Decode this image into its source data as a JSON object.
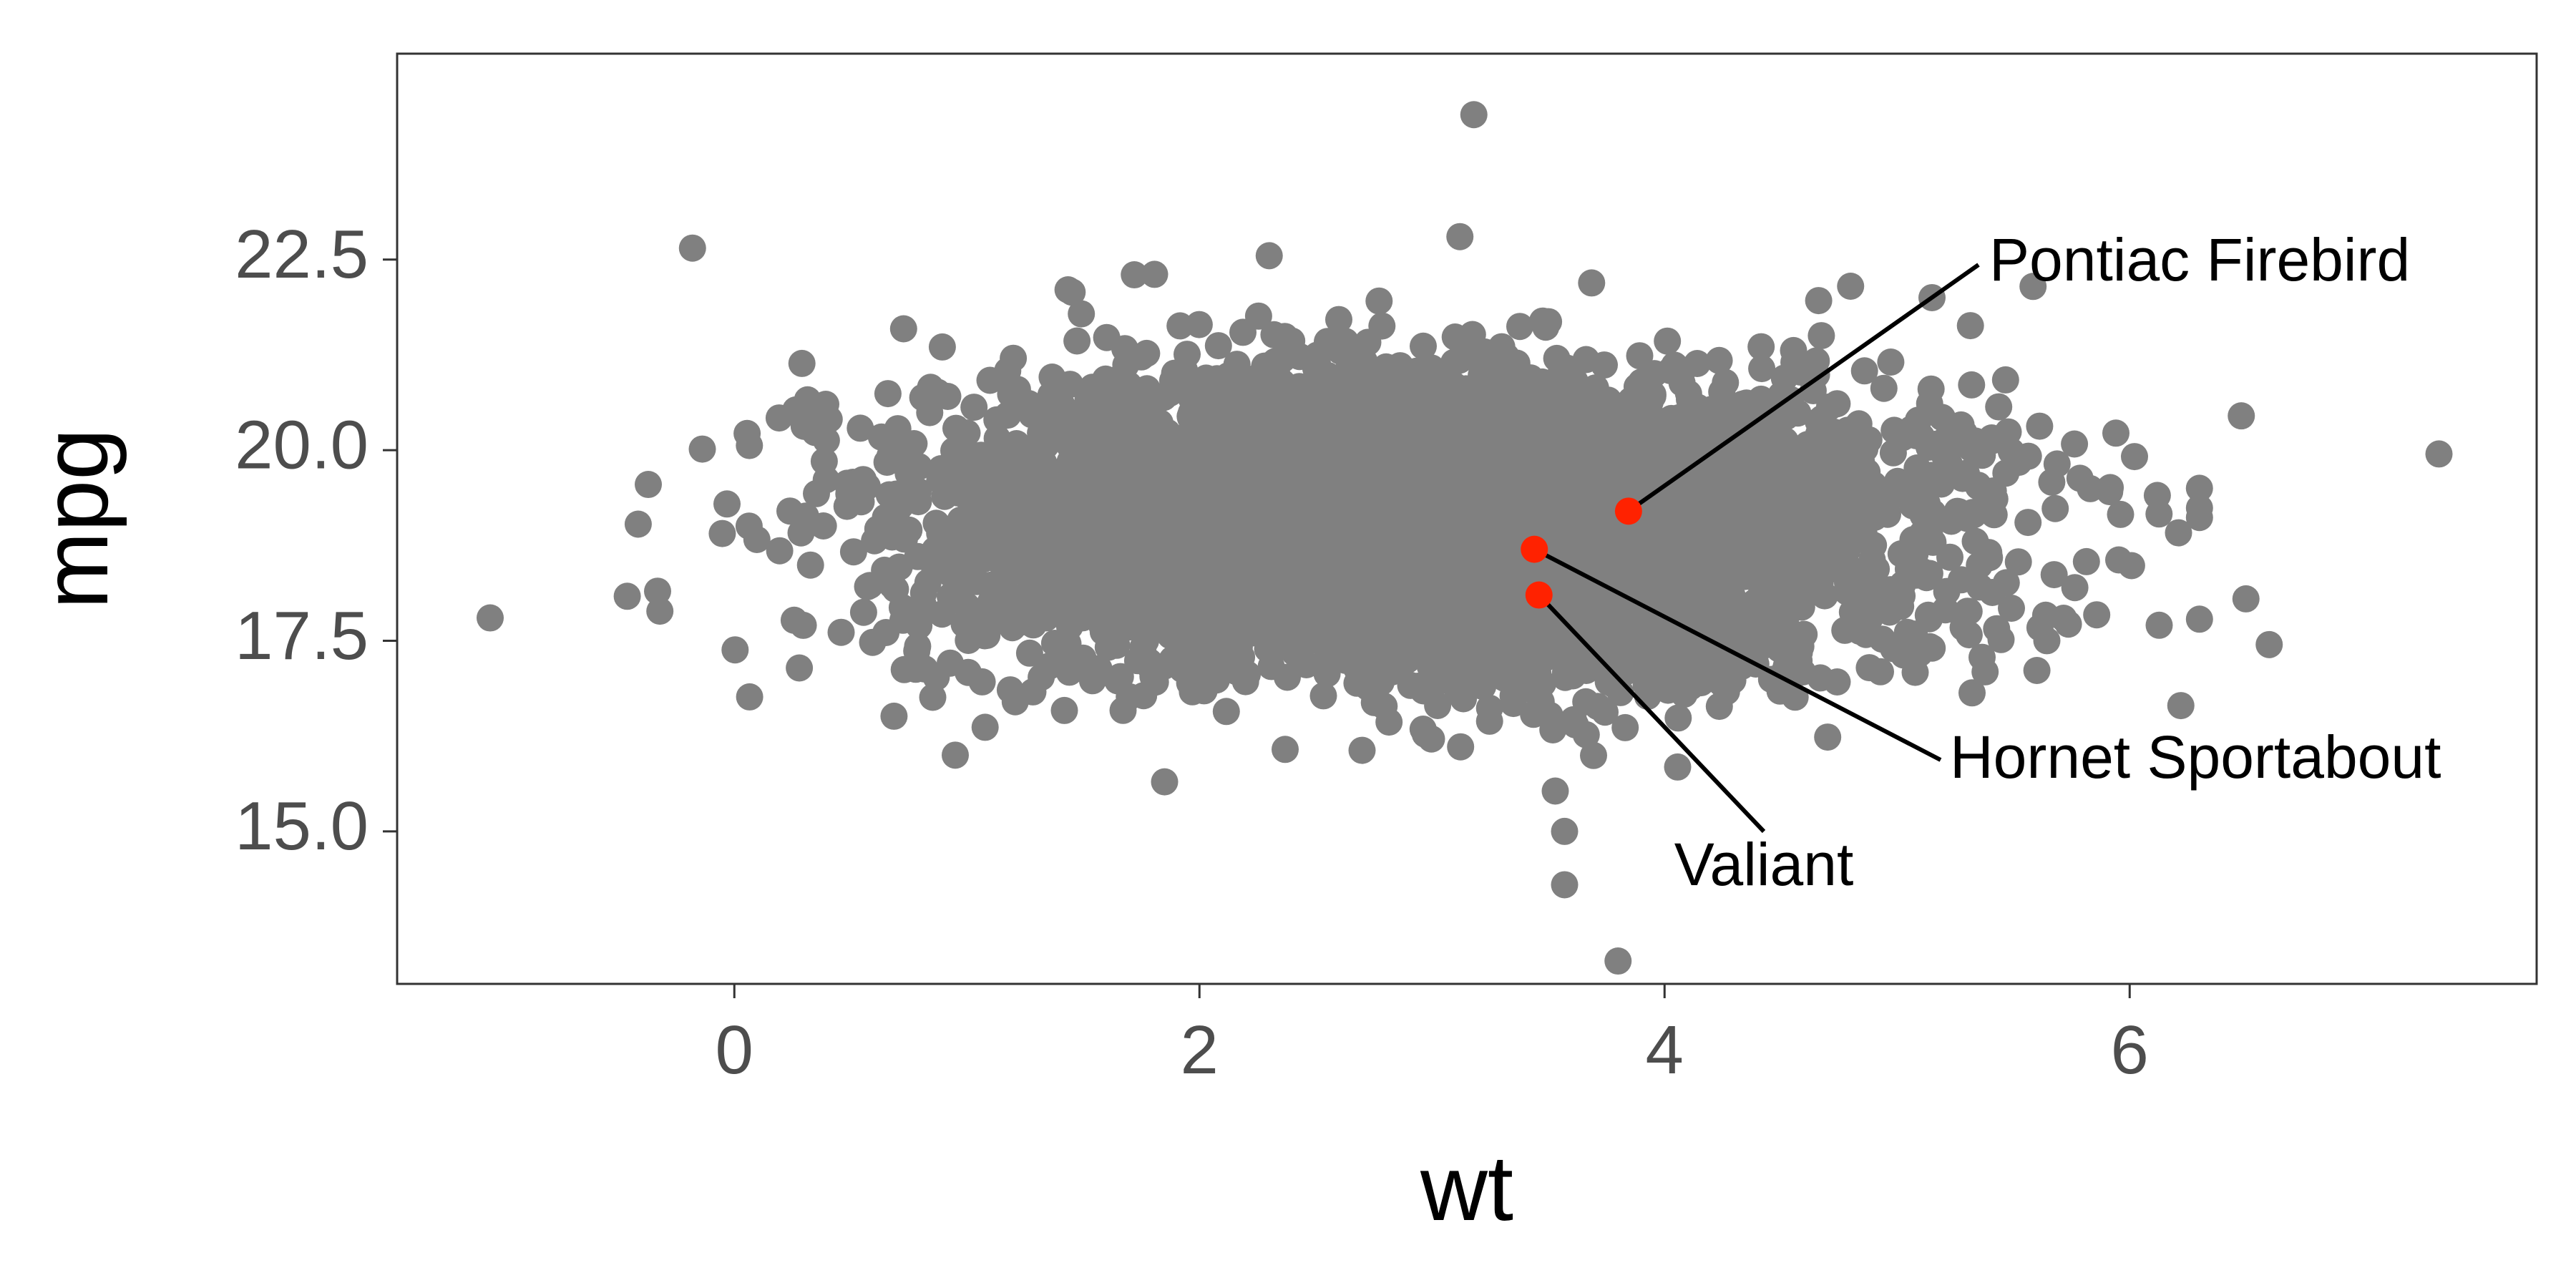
{
  "chart_data": {
    "type": "scatter",
    "title": "",
    "xlabel": "wt",
    "ylabel": "mpg",
    "xlim": [
      -1.45,
      7.75
    ],
    "ylim": [
      13.0,
      25.2
    ],
    "x_ticks": [
      0,
      2,
      4,
      6
    ],
    "x_tick_labels": [
      "0",
      "2",
      "4",
      "6"
    ],
    "y_ticks": [
      15.0,
      17.5,
      20.0,
      22.5
    ],
    "y_tick_labels": [
      "15.0",
      "17.5",
      "20.0",
      "22.5"
    ],
    "grid": false,
    "legend": "none",
    "colors": {
      "points": "#808080",
      "highlight": "#ff2200",
      "frame": "#333333",
      "leader": "#000000"
    },
    "cloud": {
      "n": 6000,
      "x_mean": 3.0,
      "x_sd": 1.0,
      "y_mean": 19.0,
      "y_sd": 0.95
    },
    "outliers": [
      {
        "x": -1.05,
        "y": 17.8
      },
      {
        "x": -0.37,
        "y": 19.55
      },
      {
        "x": -0.33,
        "y": 18.15
      },
      {
        "x": -0.18,
        "y": 22.65
      },
      {
        "x": 3.18,
        "y": 24.4
      },
      {
        "x": 3.12,
        "y": 22.8
      },
      {
        "x": 7.33,
        "y": 19.95
      },
      {
        "x": 6.6,
        "y": 17.45
      },
      {
        "x": 6.48,
        "y": 20.45
      },
      {
        "x": 6.22,
        "y": 16.65
      },
      {
        "x": 3.8,
        "y": 13.3
      },
      {
        "x": 3.57,
        "y": 14.3
      },
      {
        "x": 3.57,
        "y": 15.0
      },
      {
        "x": 1.72,
        "y": 22.3
      },
      {
        "x": 2.3,
        "y": 22.55
      },
      {
        "x": 5.15,
        "y": 22.0
      },
      {
        "x": 4.8,
        "y": 22.15
      },
      {
        "x": 6.3,
        "y": 19.5
      },
      {
        "x": 6.5,
        "y": 18.05
      },
      {
        "x": 1.85,
        "y": 15.65
      },
      {
        "x": 0.95,
        "y": 16.0
      }
    ],
    "highlighted": [
      {
        "name": "Pontiac Firebird",
        "x": 3.845,
        "y": 19.2
      },
      {
        "name": "Hornet Sportabout",
        "x": 3.44,
        "y": 18.7
      },
      {
        "name": "Valiant",
        "x": 3.46,
        "y": 18.1
      }
    ]
  }
}
